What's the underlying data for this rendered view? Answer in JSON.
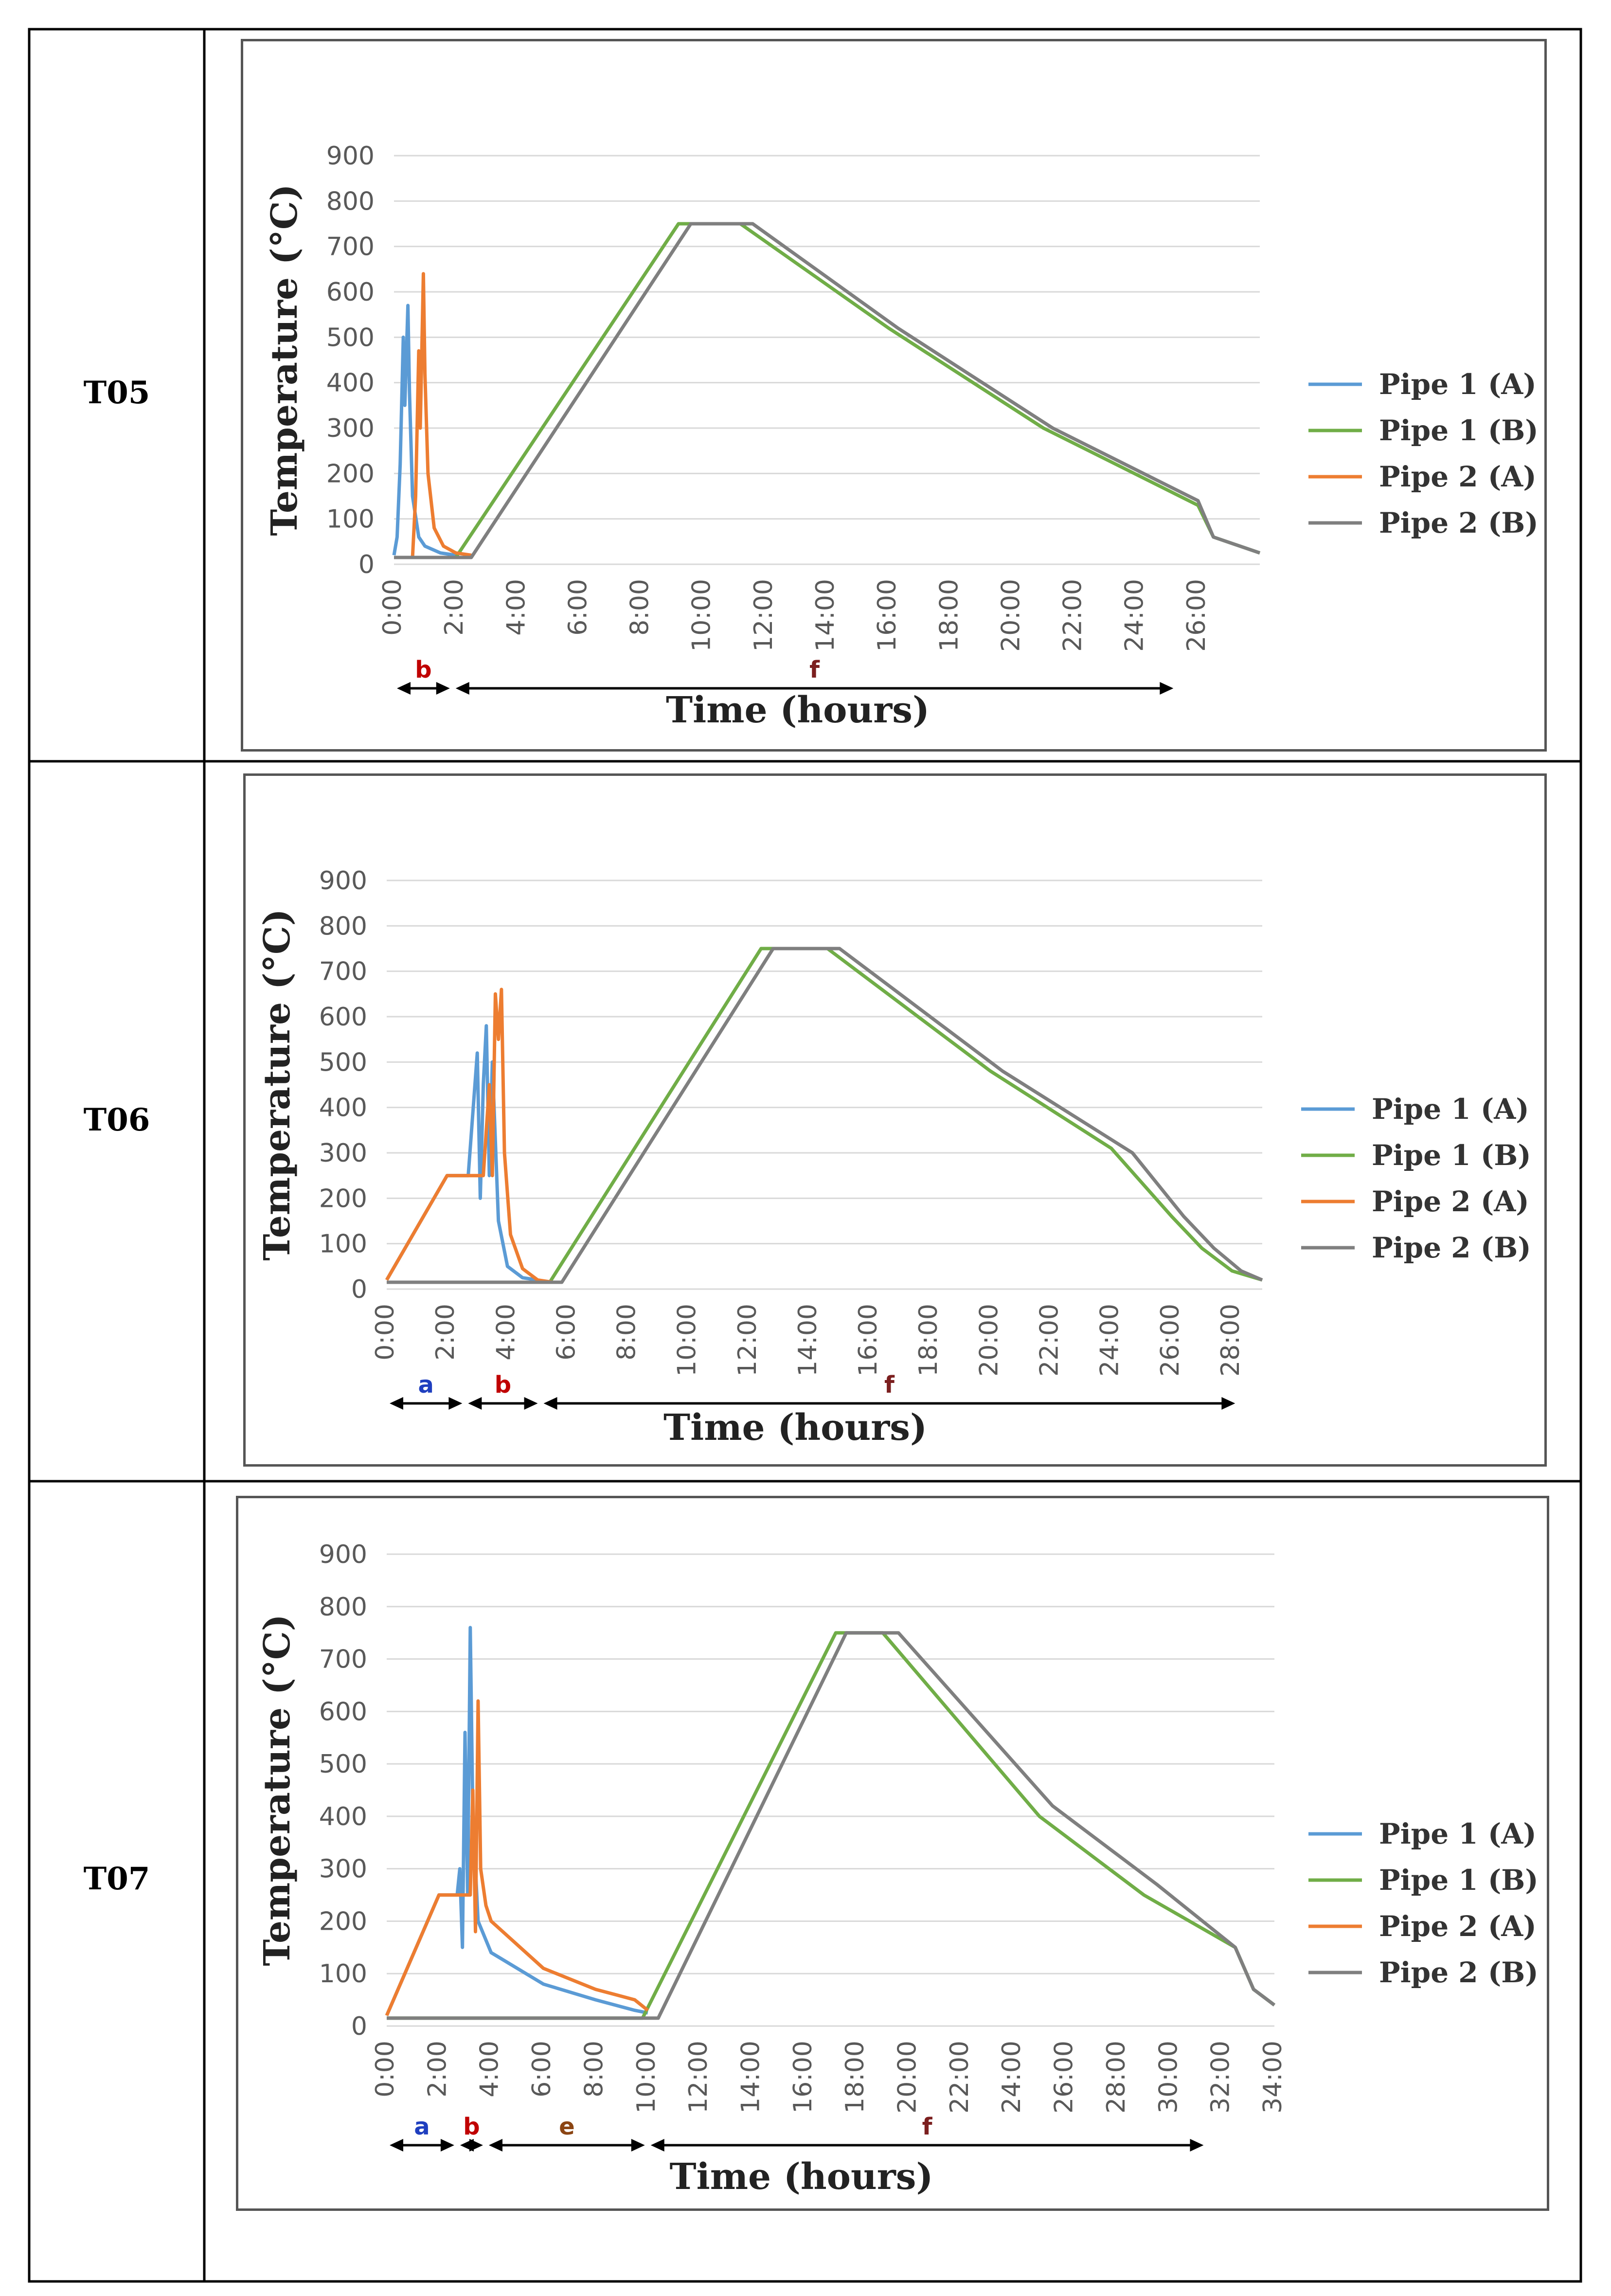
{
  "rows": [
    {
      "label": "T05",
      "chart": {
        "type": "line",
        "xlabel": "Time (hours)",
        "ylabel": "Temperature (°C)",
        "ylim": [
          0,
          900
        ],
        "yticks": [
          0,
          100,
          200,
          300,
          400,
          500,
          600,
          700,
          800,
          900
        ],
        "xlim": [
          0,
          28
        ],
        "xticks": [
          "0:00",
          "2:00",
          "4:00",
          "6:00",
          "8:00",
          "10:00",
          "12:00",
          "14:00",
          "16:00",
          "18:00",
          "20:00",
          "22:00",
          "24:00",
          "26:00"
        ],
        "legend_position": "right",
        "series": [
          {
            "name": "Pipe 1 (A)",
            "color": "#5B9BD5",
            "points": [
              [
                0,
                20
              ],
              [
                0.1,
                60
              ],
              [
                0.2,
                220
              ],
              [
                0.3,
                500
              ],
              [
                0.35,
                350
              ],
              [
                0.45,
                570
              ],
              [
                0.5,
                380
              ],
              [
                0.6,
                150
              ],
              [
                0.8,
                60
              ],
              [
                1,
                40
              ],
              [
                1.5,
                25
              ],
              [
                2,
                20
              ]
            ]
          },
          {
            "name": "Pipe 1 (B)",
            "color": "#70AD47",
            "points": [
              [
                0,
                15
              ],
              [
                1.5,
                15
              ],
              [
                2,
                15
              ],
              [
                9.2,
                750
              ],
              [
                11.2,
                750
              ],
              [
                16,
                520
              ],
              [
                21,
                300
              ],
              [
                26,
                130
              ],
              [
                26.5,
                60
              ],
              [
                28,
                25
              ]
            ]
          },
          {
            "name": "Pipe 2 (A)",
            "color": "#ED7D31",
            "points": [
              [
                0.6,
                15
              ],
              [
                0.7,
                150
              ],
              [
                0.8,
                470
              ],
              [
                0.85,
                300
              ],
              [
                0.95,
                640
              ],
              [
                1.0,
                420
              ],
              [
                1.1,
                200
              ],
              [
                1.3,
                80
              ],
              [
                1.6,
                40
              ],
              [
                2,
                25
              ],
              [
                2.5,
                20
              ]
            ]
          },
          {
            "name": "Pipe 2 (B)",
            "color": "#7F7F7F",
            "points": [
              [
                0,
                15
              ],
              [
                2.5,
                15
              ],
              [
                9.6,
                750
              ],
              [
                11.6,
                750
              ],
              [
                16.3,
                520
              ],
              [
                21.3,
                300
              ],
              [
                26,
                140
              ],
              [
                26.5,
                60
              ],
              [
                28,
                25
              ]
            ]
          }
        ],
        "annotations": [
          {
            "label": "b",
            "color": "#C00000",
            "from": 0,
            "to": 1.9
          },
          {
            "label": "f",
            "color": "#7B1F1F",
            "from": 1.9,
            "to": 25.3
          }
        ]
      }
    },
    {
      "label": "T06",
      "chart": {
        "type": "line",
        "xlabel": "Time (hours)",
        "ylabel": "Temperature (°C)",
        "ylim": [
          0,
          900
        ],
        "yticks": [
          0,
          100,
          200,
          300,
          400,
          500,
          600,
          700,
          800,
          900
        ],
        "xlim": [
          0,
          29
        ],
        "xticks": [
          "0:00",
          "2:00",
          "4:00",
          "6:00",
          "8:00",
          "10:00",
          "12:00",
          "14:00",
          "16:00",
          "18:00",
          "20:00",
          "22:00",
          "24:00",
          "26:00",
          "28:00"
        ],
        "legend_position": "right",
        "series": [
          {
            "name": "Pipe 1 (A)",
            "color": "#5B9BD5",
            "points": [
              [
                0,
                20
              ],
              [
                2,
                250
              ],
              [
                2.7,
                250
              ],
              [
                3,
                520
              ],
              [
                3.1,
                200
              ],
              [
                3.2,
                450
              ],
              [
                3.3,
                580
              ],
              [
                3.4,
                250
              ],
              [
                3.5,
                500
              ],
              [
                3.7,
                150
              ],
              [
                4,
                50
              ],
              [
                4.5,
                25
              ],
              [
                5,
                20
              ]
            ]
          },
          {
            "name": "Pipe 1 (B)",
            "color": "#70AD47",
            "points": [
              [
                0,
                15
              ],
              [
                5.4,
                15
              ],
              [
                12.4,
                750
              ],
              [
                14.6,
                750
              ],
              [
                20,
                480
              ],
              [
                24,
                310
              ],
              [
                26,
                160
              ],
              [
                27,
                90
              ],
              [
                28,
                40
              ],
              [
                29,
                20
              ]
            ]
          },
          {
            "name": "Pipe 2 (A)",
            "color": "#ED7D31",
            "points": [
              [
                0,
                20
              ],
              [
                2,
                250
              ],
              [
                3.2,
                250
              ],
              [
                3.4,
                450
              ],
              [
                3.5,
                250
              ],
              [
                3.6,
                650
              ],
              [
                3.7,
                550
              ],
              [
                3.8,
                660
              ],
              [
                3.9,
                300
              ],
              [
                4.1,
                120
              ],
              [
                4.5,
                45
              ],
              [
                5,
                20
              ],
              [
                5.5,
                15
              ]
            ]
          },
          {
            "name": "Pipe 2 (B)",
            "color": "#7F7F7F",
            "points": [
              [
                0,
                15
              ],
              [
                5.8,
                15
              ],
              [
                12.8,
                750
              ],
              [
                15,
                750
              ],
              [
                20.4,
                480
              ],
              [
                24.7,
                300
              ],
              [
                26.4,
                160
              ],
              [
                27.4,
                90
              ],
              [
                28.3,
                40
              ],
              [
                29,
                20
              ]
            ]
          }
        ],
        "annotations": [
          {
            "label": "a",
            "color": "#1F3FBF",
            "from": 0,
            "to": 2.6
          },
          {
            "label": "b",
            "color": "#C00000",
            "from": 2.6,
            "to": 5.1
          },
          {
            "label": "f",
            "color": "#7B1F1F",
            "from": 5.1,
            "to": 28.2
          }
        ]
      }
    },
    {
      "label": "T07",
      "chart": {
        "type": "line",
        "xlabel": "Time (hours)",
        "ylabel": "Temperature (°C)",
        "ylim": [
          0,
          900
        ],
        "yticks": [
          0,
          100,
          200,
          300,
          400,
          500,
          600,
          700,
          800,
          900
        ],
        "xlim": [
          0,
          34
        ],
        "xticks": [
          "0:00",
          "2:00",
          "4:00",
          "6:00",
          "8:00",
          "10:00",
          "12:00",
          "14:00",
          "16:00",
          "18:00",
          "20:00",
          "22:00",
          "24:00",
          "26:00",
          "28:00",
          "30:00",
          "32:00",
          "34:00"
        ],
        "legend_position": "right",
        "series": [
          {
            "name": "Pipe 1 (A)",
            "color": "#5B9BD5",
            "points": [
              [
                0,
                20
              ],
              [
                2,
                250
              ],
              [
                2.7,
                250
              ],
              [
                2.8,
                300
              ],
              [
                2.9,
                150
              ],
              [
                3.0,
                560
              ],
              [
                3.1,
                250
              ],
              [
                3.2,
                760
              ],
              [
                3.3,
                400
              ],
              [
                3.5,
                200
              ],
              [
                4,
                140
              ],
              [
                6,
                80
              ],
              [
                8,
                50
              ],
              [
                9.5,
                30
              ],
              [
                10,
                25
              ]
            ]
          },
          {
            "name": "Pipe 1 (B)",
            "color": "#70AD47",
            "points": [
              [
                0,
                15
              ],
              [
                9.8,
                15
              ],
              [
                17.2,
                750
              ],
              [
                19,
                750
              ],
              [
                25,
                400
              ],
              [
                29,
                250
              ],
              [
                32.5,
                150
              ],
              [
                33.2,
                70
              ],
              [
                34,
                40
              ]
            ]
          },
          {
            "name": "Pipe 2 (A)",
            "color": "#ED7D31",
            "points": [
              [
                0,
                20
              ],
              [
                2,
                250
              ],
              [
                3.2,
                250
              ],
              [
                3.3,
                450
              ],
              [
                3.4,
                180
              ],
              [
                3.5,
                620
              ],
              [
                3.6,
                300
              ],
              [
                3.8,
                230
              ],
              [
                4,
                200
              ],
              [
                6,
                110
              ],
              [
                8,
                70
              ],
              [
                9.5,
                50
              ],
              [
                10,
                30
              ]
            ]
          },
          {
            "name": "Pipe 2 (B)",
            "color": "#7F7F7F",
            "points": [
              [
                0,
                15
              ],
              [
                10.4,
                15
              ],
              [
                17.6,
                750
              ],
              [
                19.6,
                750
              ],
              [
                25.5,
                420
              ],
              [
                29.5,
                270
              ],
              [
                32.5,
                150
              ],
              [
                33.2,
                70
              ],
              [
                34,
                40
              ]
            ]
          }
        ],
        "annotations": [
          {
            "label": "a",
            "color": "#1F3FBF",
            "from": 0,
            "to": 2.7
          },
          {
            "label": "b",
            "color": "#C00000",
            "from": 2.7,
            "to": 3.8
          },
          {
            "label": "e",
            "color": "#8B4513",
            "from": 3.8,
            "to": 10
          },
          {
            "label": "f",
            "color": "#7B1F1F",
            "from": 10,
            "to": 31.4
          }
        ]
      }
    }
  ]
}
